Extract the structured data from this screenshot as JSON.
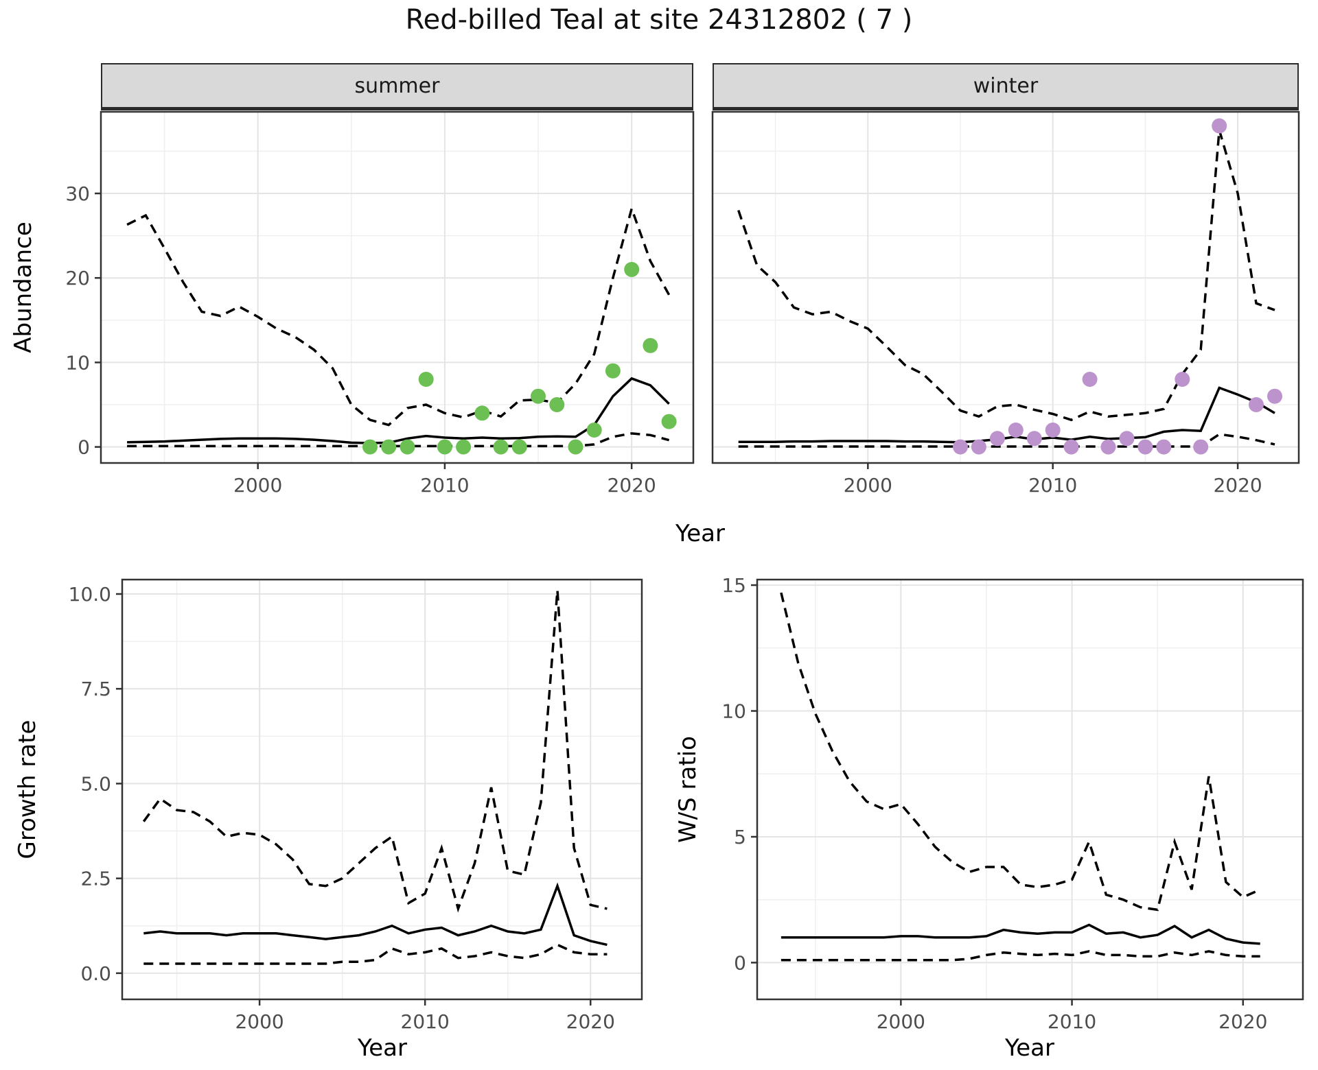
{
  "title": "Red-billed Teal at site 24312802 ( 7 )",
  "colors": {
    "summer_points": "#6cbf53",
    "winter_points": "#bd93ce",
    "line": "#000000",
    "grid_major": "#e4e4e4",
    "grid_minor": "#efefef",
    "strip_bg": "#d9d9d9",
    "panel_border": "#333333",
    "tick_text": "#4d4d4d"
  },
  "chart_data": [
    {
      "type": "line",
      "facet": "summer",
      "xlabel": "Year",
      "ylabel": "Abundance",
      "xlim": [
        1991.6,
        2023.3
      ],
      "ylim": [
        -1.9,
        39.66
      ],
      "xticks": {
        "values": [
          2000,
          2010,
          2020
        ],
        "labels": [
          "2000",
          "2010",
          "2020"
        ],
        "minor": [
          1995,
          2005,
          2015
        ]
      },
      "yticks": {
        "values": [
          0,
          10,
          20,
          30
        ],
        "labels": [
          "0",
          "10",
          "20",
          "30"
        ],
        "minor": [
          5,
          15,
          25,
          35
        ]
      },
      "x_years": [
        1993,
        1994,
        1995,
        1996,
        1997,
        1998,
        1999,
        2000,
        2001,
        2002,
        2003,
        2004,
        2005,
        2006,
        2007,
        2008,
        2009,
        2010,
        2011,
        2012,
        2013,
        2014,
        2015,
        2016,
        2017,
        2018,
        2019,
        2020,
        2021,
        2022
      ],
      "series": [
        {
          "name": "upper_95ci",
          "style": "dashed",
          "values": [
            26.3,
            27.4,
            23.5,
            19.5,
            16.0,
            15.5,
            16.6,
            15.4,
            14.0,
            13.0,
            11.5,
            9.3,
            5.0,
            3.2,
            2.6,
            4.6,
            5.0,
            4.0,
            3.5,
            4.3,
            3.6,
            5.5,
            5.6,
            5.2,
            7.5,
            11.0,
            20.0,
            28.2,
            22.0,
            18.0
          ]
        },
        {
          "name": "median",
          "style": "solid",
          "values": [
            0.55,
            0.6,
            0.65,
            0.75,
            0.85,
            0.95,
            1.0,
            1.0,
            1.0,
            0.95,
            0.85,
            0.7,
            0.5,
            0.45,
            0.5,
            1.0,
            1.3,
            1.1,
            1.0,
            1.1,
            1.0,
            1.05,
            1.2,
            1.25,
            1.2,
            2.6,
            6.0,
            8.1,
            7.3,
            5.1
          ]
        },
        {
          "name": "lower_95ci",
          "style": "dashed",
          "values": [
            0.1,
            0.1,
            0.1,
            0.1,
            0.1,
            0.1,
            0.1,
            0.1,
            0.1,
            0.1,
            0.1,
            0.1,
            0.1,
            0.1,
            0.1,
            0.1,
            0.1,
            0.1,
            0.1,
            0.1,
            0.1,
            0.1,
            0.1,
            0.1,
            0.1,
            0.3,
            1.2,
            1.6,
            1.4,
            0.8
          ]
        }
      ],
      "observations": {
        "years": [
          2006,
          2007,
          2008,
          2009,
          2010,
          2011,
          2012,
          2013,
          2014,
          2015,
          2016,
          2017,
          2018,
          2019,
          2020,
          2021,
          2022
        ],
        "values": [
          0,
          0,
          0,
          8,
          0,
          0,
          4,
          0,
          0,
          6,
          5,
          0,
          2,
          9,
          21,
          12,
          3
        ]
      }
    },
    {
      "type": "line",
      "facet": "winter",
      "xlabel": "Year",
      "ylabel": "Abundance",
      "xlim": [
        1991.6,
        2023.3
      ],
      "ylim": [
        -1.9,
        39.66
      ],
      "xticks": {
        "values": [
          2000,
          2010,
          2020
        ],
        "labels": [
          "2000",
          "2010",
          "2020"
        ],
        "minor": [
          1995,
          2005,
          2015
        ]
      },
      "yticks": {
        "values": [
          0,
          10,
          20,
          30
        ],
        "labels": [
          "0",
          "10",
          "20",
          "30"
        ],
        "minor": [
          5,
          15,
          25,
          35
        ]
      },
      "x_years": [
        1993,
        1994,
        1995,
        1996,
        1997,
        1998,
        1999,
        2000,
        2001,
        2002,
        2003,
        2004,
        2005,
        2006,
        2007,
        2008,
        2009,
        2010,
        2011,
        2012,
        2013,
        2014,
        2015,
        2016,
        2017,
        2018,
        2019,
        2020,
        2021,
        2022
      ],
      "series": [
        {
          "name": "upper_95ci",
          "style": "dashed",
          "values": [
            28.0,
            21.5,
            19.5,
            16.5,
            15.7,
            16.0,
            14.9,
            14.0,
            11.9,
            9.7,
            8.6,
            6.5,
            4.3,
            3.6,
            4.8,
            5.0,
            4.4,
            3.9,
            3.2,
            4.2,
            3.6,
            3.8,
            4.0,
            4.5,
            8.6,
            11.5,
            37.5,
            30.0,
            17.0,
            16.2
          ]
        },
        {
          "name": "median",
          "style": "solid",
          "values": [
            0.6,
            0.6,
            0.6,
            0.65,
            0.65,
            0.7,
            0.7,
            0.7,
            0.7,
            0.65,
            0.65,
            0.6,
            0.55,
            0.7,
            0.9,
            1.2,
            0.9,
            1.1,
            0.85,
            1.2,
            0.95,
            1.05,
            1.15,
            1.8,
            2.0,
            1.9,
            7.0,
            6.2,
            5.3,
            4.0
          ]
        },
        {
          "name": "lower_95ci",
          "style": "dashed",
          "values": [
            0.05,
            0.05,
            0.05,
            0.05,
            0.05,
            0.05,
            0.05,
            0.05,
            0.05,
            0.05,
            0.05,
            0.05,
            0.05,
            0.05,
            0.05,
            0.05,
            0.05,
            0.05,
            0.05,
            0.05,
            0.05,
            0.05,
            0.05,
            0.05,
            0.05,
            0.05,
            1.5,
            1.2,
            0.8,
            0.3
          ]
        }
      ],
      "observations": {
        "years": [
          2005,
          2006,
          2007,
          2008,
          2009,
          2010,
          2011,
          2012,
          2013,
          2014,
          2015,
          2016,
          2017,
          2018,
          2019,
          2021,
          2022
        ],
        "values": [
          0,
          0,
          1,
          2,
          1,
          2,
          0,
          8,
          0,
          1,
          0,
          0,
          8,
          0,
          38,
          5,
          6
        ]
      }
    },
    {
      "type": "line",
      "facet": "",
      "xlabel": "Year",
      "ylabel": "Growth rate",
      "xlim": [
        1991.7,
        2023.1
      ],
      "ylim": [
        -0.69,
        10.38
      ],
      "xticks": {
        "values": [
          2000,
          2010,
          2020
        ],
        "labels": [
          "2000",
          "2010",
          "2020"
        ],
        "minor": [
          1995,
          2005,
          2015
        ]
      },
      "yticks": {
        "values": [
          0,
          2.5,
          5,
          7.5,
          10
        ],
        "labels": [
          "0.0",
          "2.5",
          "5.0",
          "7.5",
          "10.0"
        ],
        "minor": [
          1.25,
          3.75,
          6.25,
          8.75
        ]
      },
      "x_years": [
        1993,
        1994,
        1995,
        1996,
        1997,
        1998,
        1999,
        2000,
        2001,
        2002,
        2003,
        2004,
        2005,
        2006,
        2007,
        2008,
        2009,
        2010,
        2011,
        2012,
        2013,
        2014,
        2015,
        2016,
        2017,
        2018,
        2019,
        2020,
        2021
      ],
      "series": [
        {
          "name": "upper_95ci",
          "style": "dashed",
          "values": [
            4.0,
            4.6,
            4.3,
            4.25,
            4.0,
            3.6,
            3.7,
            3.65,
            3.4,
            3.0,
            2.35,
            2.3,
            2.5,
            2.9,
            3.3,
            3.6,
            1.85,
            2.1,
            3.3,
            1.7,
            2.9,
            4.9,
            2.7,
            2.6,
            4.5,
            10.1,
            3.3,
            1.8,
            1.7
          ]
        },
        {
          "name": "median",
          "style": "solid",
          "values": [
            1.05,
            1.1,
            1.05,
            1.05,
            1.05,
            1.0,
            1.05,
            1.05,
            1.05,
            1.0,
            0.95,
            0.9,
            0.95,
            1.0,
            1.1,
            1.25,
            1.05,
            1.15,
            1.2,
            1.0,
            1.1,
            1.25,
            1.1,
            1.05,
            1.15,
            2.3,
            1.0,
            0.85,
            0.75
          ]
        },
        {
          "name": "lower_95ci",
          "style": "dashed",
          "values": [
            0.25,
            0.25,
            0.25,
            0.25,
            0.25,
            0.25,
            0.25,
            0.25,
            0.25,
            0.25,
            0.25,
            0.25,
            0.3,
            0.3,
            0.35,
            0.65,
            0.5,
            0.55,
            0.65,
            0.4,
            0.45,
            0.55,
            0.45,
            0.4,
            0.5,
            0.75,
            0.55,
            0.5,
            0.5
          ]
        }
      ],
      "observations": {
        "years": [],
        "values": []
      }
    },
    {
      "type": "line",
      "facet": "",
      "xlabel": "Year",
      "ylabel": "W/S ratio",
      "xlim": [
        1991.6,
        2023.5
      ],
      "ylim": [
        -1.46,
        15.22
      ],
      "xticks": {
        "values": [
          2000,
          2010,
          2020
        ],
        "labels": [
          "2000",
          "2010",
          "2020"
        ],
        "minor": [
          1995,
          2005,
          2015
        ]
      },
      "yticks": {
        "values": [
          0,
          5,
          10,
          15
        ],
        "labels": [
          "0",
          "5",
          "10",
          "15"
        ],
        "minor": [
          2.5,
          7.5,
          12.5
        ]
      },
      "x_years": [
        1993,
        1994,
        1995,
        1996,
        1997,
        1998,
        1999,
        2000,
        2001,
        2002,
        2003,
        2004,
        2005,
        2006,
        2007,
        2008,
        2009,
        2010,
        2011,
        2012,
        2013,
        2014,
        2015,
        2016,
        2017,
        2018,
        2019,
        2020,
        2021
      ],
      "series": [
        {
          "name": "upper_95ci",
          "style": "dashed",
          "values": [
            14.7,
            11.9,
            9.9,
            8.4,
            7.2,
            6.4,
            6.1,
            6.3,
            5.5,
            4.6,
            4.0,
            3.6,
            3.8,
            3.8,
            3.1,
            3.0,
            3.1,
            3.3,
            4.8,
            2.7,
            2.5,
            2.2,
            2.1,
            4.8,
            2.9,
            7.4,
            3.2,
            2.6,
            2.9
          ]
        },
        {
          "name": "median",
          "style": "solid",
          "values": [
            1.0,
            1.0,
            1.0,
            1.0,
            1.0,
            1.0,
            1.0,
            1.05,
            1.05,
            1.0,
            1.0,
            1.0,
            1.05,
            1.3,
            1.2,
            1.15,
            1.2,
            1.2,
            1.5,
            1.15,
            1.2,
            1.0,
            1.1,
            1.45,
            1.0,
            1.3,
            0.95,
            0.8,
            0.75
          ]
        },
        {
          "name": "lower_95ci",
          "style": "dashed",
          "values": [
            0.1,
            0.1,
            0.1,
            0.1,
            0.1,
            0.1,
            0.1,
            0.1,
            0.1,
            0.1,
            0.1,
            0.15,
            0.3,
            0.4,
            0.35,
            0.3,
            0.35,
            0.3,
            0.45,
            0.3,
            0.3,
            0.25,
            0.25,
            0.4,
            0.3,
            0.45,
            0.3,
            0.25,
            0.25
          ]
        }
      ],
      "observations": {
        "years": [],
        "values": []
      }
    }
  ]
}
